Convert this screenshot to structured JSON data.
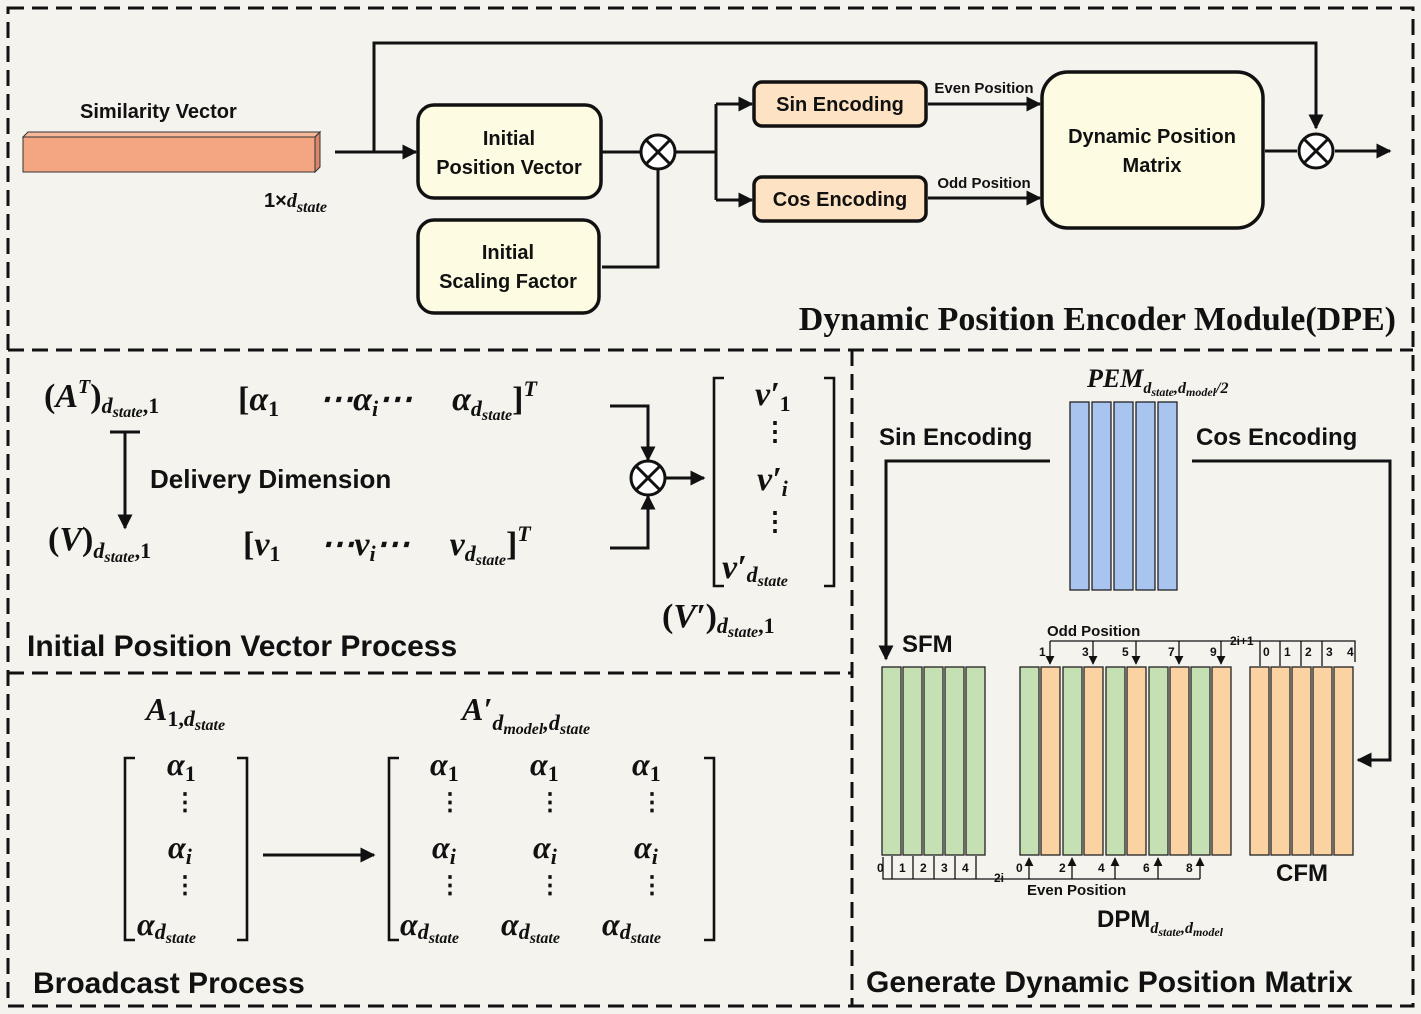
{
  "dpe": {
    "similarity_vector": "Similarity Vector",
    "dim_label_a": "1×",
    "dim_label_b": "d",
    "dim_label_c": "state",
    "initial_position_vector_1": "Initial",
    "initial_position_vector_2": "Position Vector",
    "initial_scaling_factor_1": "Initial",
    "initial_scaling_factor_2": "Scaling Factor",
    "sin_encoding": "Sin Encoding",
    "cos_encoding": "Cos Encoding",
    "even_position": "Even Position",
    "odd_position": "Odd Position",
    "dpm_1": "Dynamic Position",
    "dpm_2": "Matrix",
    "title": "Dynamic Position Encoder Module(DPE)"
  },
  "ipvp": {
    "delivery_dimension": "Delivery Dimension",
    "title": "Initial Position Vector Process"
  },
  "broadcast": {
    "title": "Broadcast Process"
  },
  "gdpm": {
    "sin_encoding": "Sin Encoding",
    "cos_encoding": "Cos Encoding",
    "sfm": "SFM",
    "cfm": "CFM",
    "odd_position": "Odd Position",
    "even_position": "Even Position",
    "dpm_main": "DPM",
    "title": "Generate Dynamic Position Matrix",
    "sfm_idx": [
      "0",
      "1",
      "2",
      "3",
      "4"
    ],
    "sfm_tail": "2i",
    "cfm_idx": [
      "0",
      "1",
      "2",
      "3",
      "4"
    ],
    "odd_idx": [
      "1",
      "3",
      "5",
      "7",
      "9"
    ],
    "odd_tail": "2i+1",
    "even_idx": [
      "0",
      "2",
      "4",
      "6",
      "8"
    ]
  }
}
